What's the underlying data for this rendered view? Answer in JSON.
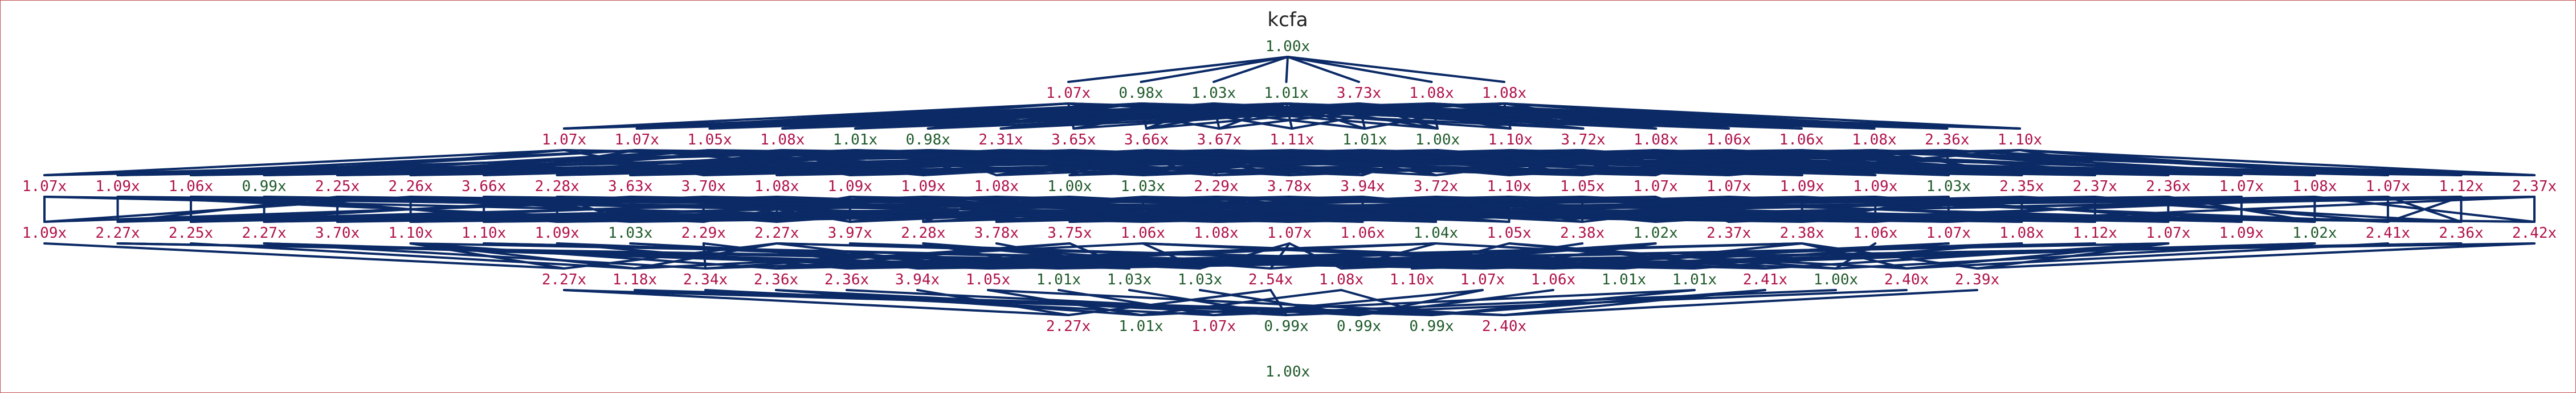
{
  "title": "kcfa",
  "colors": {
    "slow": "#b0124a",
    "fast": "#1f5a2a",
    "neutral": "#1f5a2a",
    "edge": "#0b2a66"
  },
  "levels": [
    [
      "1.00x"
    ],
    [
      "1.07x",
      "0.98x",
      "1.03x",
      "1.01x",
      "3.73x",
      "1.08x",
      "1.08x"
    ],
    [
      "1.07x",
      "1.07x",
      "1.05x",
      "1.08x",
      "1.01x",
      "0.98x",
      "2.31x",
      "3.65x",
      "3.66x",
      "3.67x",
      "1.11x",
      "1.01x",
      "1.00x",
      "1.10x",
      "3.72x",
      "1.08x",
      "1.06x",
      "1.06x",
      "1.08x",
      "2.36x",
      "1.10x"
    ],
    [
      "1.07x",
      "1.09x",
      "1.06x",
      "0.99x",
      "2.25x",
      "2.26x",
      "3.66x",
      "2.28x",
      "3.63x",
      "3.70x",
      "1.08x",
      "1.09x",
      "1.09x",
      "1.08x",
      "1.00x",
      "1.03x",
      "2.29x",
      "3.78x",
      "3.94x",
      "3.72x",
      "1.10x",
      "1.05x",
      "1.07x",
      "1.07x",
      "1.09x",
      "1.09x",
      "1.03x",
      "2.35x",
      "2.37x",
      "2.36x",
      "1.07x",
      "1.08x",
      "1.07x",
      "1.12x",
      "2.37x"
    ],
    [
      "1.09x",
      "2.27x",
      "2.25x",
      "2.27x",
      "3.70x",
      "1.10x",
      "1.10x",
      "1.09x",
      "1.03x",
      "2.29x",
      "2.27x",
      "3.97x",
      "2.28x",
      "3.78x",
      "3.75x",
      "1.06x",
      "1.08x",
      "1.07x",
      "1.06x",
      "1.04x",
      "1.05x",
      "2.38x",
      "1.02x",
      "2.37x",
      "2.38x",
      "1.06x",
      "1.07x",
      "1.08x",
      "1.12x",
      "1.07x",
      "1.09x",
      "1.02x",
      "2.41x",
      "2.36x",
      "2.42x"
    ],
    [
      "2.27x",
      "1.18x",
      "2.34x",
      "2.36x",
      "2.36x",
      "3.94x",
      "1.05x",
      "1.01x",
      "1.03x",
      "1.03x",
      "2.54x",
      "1.08x",
      "1.10x",
      "1.07x",
      "1.06x",
      "1.01x",
      "1.01x",
      "2.41x",
      "1.00x",
      "2.40x",
      "2.39x"
    ],
    [
      "2.27x",
      "1.01x",
      "1.07x",
      "0.99x",
      "0.99x",
      "0.99x",
      "2.40x"
    ],
    [
      "1.00x"
    ]
  ]
}
